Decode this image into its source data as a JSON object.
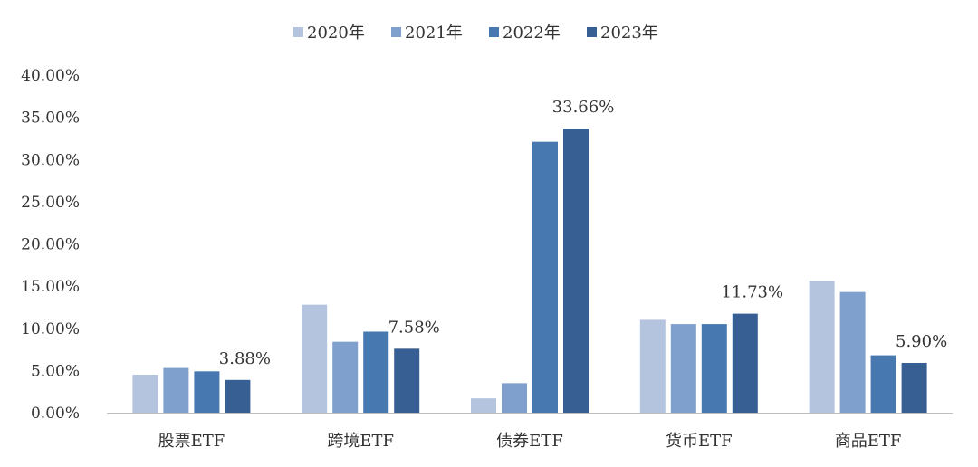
{
  "chart_data": {
    "type": "bar",
    "categories": [
      "股票ETF",
      "跨境ETF",
      "债券ETF",
      "货币ETF",
      "商品ETF"
    ],
    "series": [
      {
        "name": "2020年",
        "color": "#b4c3de",
        "values": [
          4.5,
          12.8,
          1.7,
          11.0,
          15.6
        ]
      },
      {
        "name": "2021年",
        "color": "#7f9fcc",
        "values": [
          5.3,
          8.4,
          3.5,
          10.5,
          14.3
        ]
      },
      {
        "name": "2022年",
        "color": "#4878b0",
        "values": [
          4.9,
          9.6,
          32.1,
          10.5,
          6.8
        ]
      },
      {
        "name": "2023年",
        "color": "#385f93",
        "values": [
          3.88,
          7.58,
          33.66,
          11.73,
          5.9
        ]
      }
    ],
    "data_labels": [
      {
        "category_index": 0,
        "series_index": 3,
        "text": "3.88%"
      },
      {
        "category_index": 1,
        "series_index": 3,
        "text": "7.58%"
      },
      {
        "category_index": 2,
        "series_index": 3,
        "text": "33.66%"
      },
      {
        "category_index": 3,
        "series_index": 3,
        "text": "11.73%"
      },
      {
        "category_index": 4,
        "series_index": 3,
        "text": "5.90%"
      }
    ],
    "y_ticks": [
      "0.00%",
      "5.00%",
      "10.00%",
      "15.00%",
      "20.00%",
      "25.00%",
      "30.00%",
      "35.00%",
      "40.00%"
    ],
    "ylim": [
      0,
      40
    ],
    "ytick_step": 5,
    "grid": false,
    "legend_position": "top-center",
    "title": "",
    "xlabel": "",
    "ylabel": ""
  }
}
